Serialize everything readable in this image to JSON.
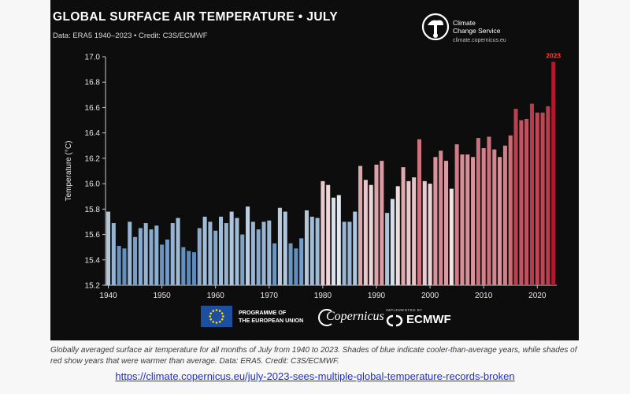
{
  "chart_data": {
    "type": "bar",
    "title": "GLOBAL SURFACE AIR TEMPERATURE • JULY",
    "subtitle": "Data: ERA5 1940–2023 • Credit: C3S/ECMWF",
    "ylabel": "Temperature (°C)",
    "xlabel": "",
    "ylim": [
      15.2,
      17.0
    ],
    "yticks": [
      "15.2",
      "15.4",
      "15.6",
      "15.8",
      "16.0",
      "16.2",
      "16.4",
      "16.6",
      "16.8",
      "17.0"
    ],
    "xticks": [
      "1940",
      "1950",
      "1960",
      "1970",
      "1980",
      "1990",
      "2000",
      "2010",
      "2020"
    ],
    "grid": false,
    "highlight_label": "2023",
    "x": [
      1940,
      1941,
      1942,
      1943,
      1944,
      1945,
      1946,
      1947,
      1948,
      1949,
      1950,
      1951,
      1952,
      1953,
      1954,
      1955,
      1956,
      1957,
      1958,
      1959,
      1960,
      1961,
      1962,
      1963,
      1964,
      1965,
      1966,
      1967,
      1968,
      1969,
      1970,
      1971,
      1972,
      1973,
      1974,
      1975,
      1976,
      1977,
      1978,
      1979,
      1980,
      1981,
      1982,
      1983,
      1984,
      1985,
      1986,
      1987,
      1988,
      1989,
      1990,
      1991,
      1992,
      1993,
      1994,
      1995,
      1996,
      1997,
      1998,
      1999,
      2000,
      2001,
      2002,
      2003,
      2004,
      2005,
      2006,
      2007,
      2008,
      2009,
      2010,
      2011,
      2012,
      2013,
      2014,
      2015,
      2016,
      2017,
      2018,
      2019,
      2020,
      2021,
      2022,
      2023
    ],
    "values": [
      15.78,
      15.69,
      15.51,
      15.49,
      15.7,
      15.58,
      15.65,
      15.69,
      15.64,
      15.67,
      15.52,
      15.56,
      15.69,
      15.73,
      15.5,
      15.47,
      15.46,
      15.65,
      15.74,
      15.7,
      15.63,
      15.74,
      15.69,
      15.78,
      15.73,
      15.6,
      15.82,
      15.7,
      15.64,
      15.7,
      15.71,
      15.53,
      15.81,
      15.78,
      15.53,
      15.49,
      15.57,
      15.79,
      15.74,
      15.73,
      16.02,
      15.99,
      15.89,
      15.91,
      15.7,
      15.7,
      15.78,
      16.14,
      16.03,
      15.99,
      16.15,
      16.18,
      15.77,
      15.88,
      15.98,
      16.13,
      16.02,
      16.05,
      16.35,
      16.02,
      16.0,
      16.21,
      16.26,
      16.18,
      15.96,
      16.31,
      16.23,
      16.23,
      16.21,
      16.36,
      16.28,
      16.37,
      16.27,
      16.21,
      16.3,
      16.38,
      16.59,
      16.5,
      16.51,
      16.63,
      16.56,
      16.56,
      16.61,
      16.96
    ],
    "colors": {
      "cold": "#08519c",
      "neutral": "#f7f7f7",
      "warm": "#b2182b",
      "axis": "#cccccc",
      "highlight_label": "#ff3b3b"
    }
  },
  "logo": {
    "name_line1": "Climate",
    "name_line2": "Change Service",
    "url": "climate.copernicus.eu",
    "icon": "climate-change-service-icon"
  },
  "partners": {
    "eu_line1": "PROGRAMME OF",
    "eu_line2": "THE EUROPEAN UNION",
    "copernicus": "Copernicus",
    "ecmwf_small": "IMPLEMENTED BY",
    "ecmwf": "ECMWF"
  },
  "caption": "Globally averaged surface air temperature for all months of July from 1940 to 2023. Shades of blue indicate cooler-than-average years, while shades of red show years that were warmer than average. Data: ERA5. Credit: C3S/ECMWF.",
  "link": "https://climate.copernicus.eu/july-2023-sees-multiple-global-temperature-records-broken"
}
